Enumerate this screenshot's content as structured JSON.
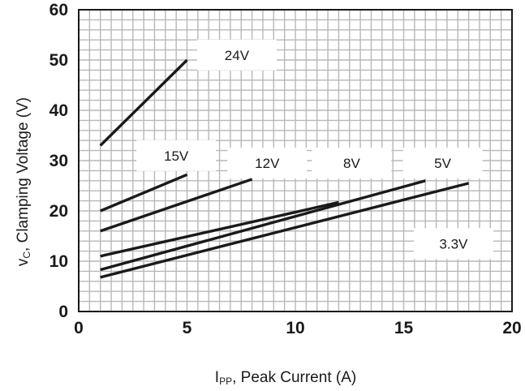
{
  "chart_data": {
    "type": "line",
    "title": "",
    "xlabel": {
      "main": "I",
      "sub": "PP",
      "rest": ", Peak Current (A)"
    },
    "ylabel": {
      "main": "v",
      "sub": "C",
      "rest": ", Clamping Voltage (V)"
    },
    "xlim": [
      0,
      20
    ],
    "ylim": [
      0,
      60
    ],
    "x_ticks": [
      0,
      5,
      10,
      15,
      20
    ],
    "y_ticks": [
      0,
      10,
      20,
      30,
      40,
      50,
      60
    ],
    "grid": true,
    "series": [
      {
        "name": "24V",
        "x": [
          1,
          5
        ],
        "y": [
          33,
          50
        ]
      },
      {
        "name": "15V",
        "x": [
          1,
          5
        ],
        "y": [
          20,
          27.2
        ]
      },
      {
        "name": "12V",
        "x": [
          1,
          8
        ],
        "y": [
          16,
          26.3
        ]
      },
      {
        "name": "8V",
        "x": [
          1,
          12
        ],
        "y": [
          11,
          21.7
        ]
      },
      {
        "name": "5V",
        "x": [
          1,
          16
        ],
        "y": [
          8.3,
          26
        ]
      },
      {
        "name": "3.3V",
        "x": [
          1,
          18
        ],
        "y": [
          6.8,
          25.5
        ]
      }
    ],
    "series_label_positions": [
      {
        "name": "24V",
        "x": 7.3,
        "y": 51
      },
      {
        "name": "15V",
        "x": 4.5,
        "y": 31
      },
      {
        "name": "12V",
        "x": 8.7,
        "y": 29.5
      },
      {
        "name": "8V",
        "x": 12.6,
        "y": 29.5
      },
      {
        "name": "5V",
        "x": 16.8,
        "y": 29.5
      },
      {
        "name": "3.3V",
        "x": 17.3,
        "y": 13.5
      }
    ],
    "colors": {
      "line": "#1a1a1a",
      "grid": "#b8b8b8",
      "frame": "#1a1a1a"
    }
  }
}
